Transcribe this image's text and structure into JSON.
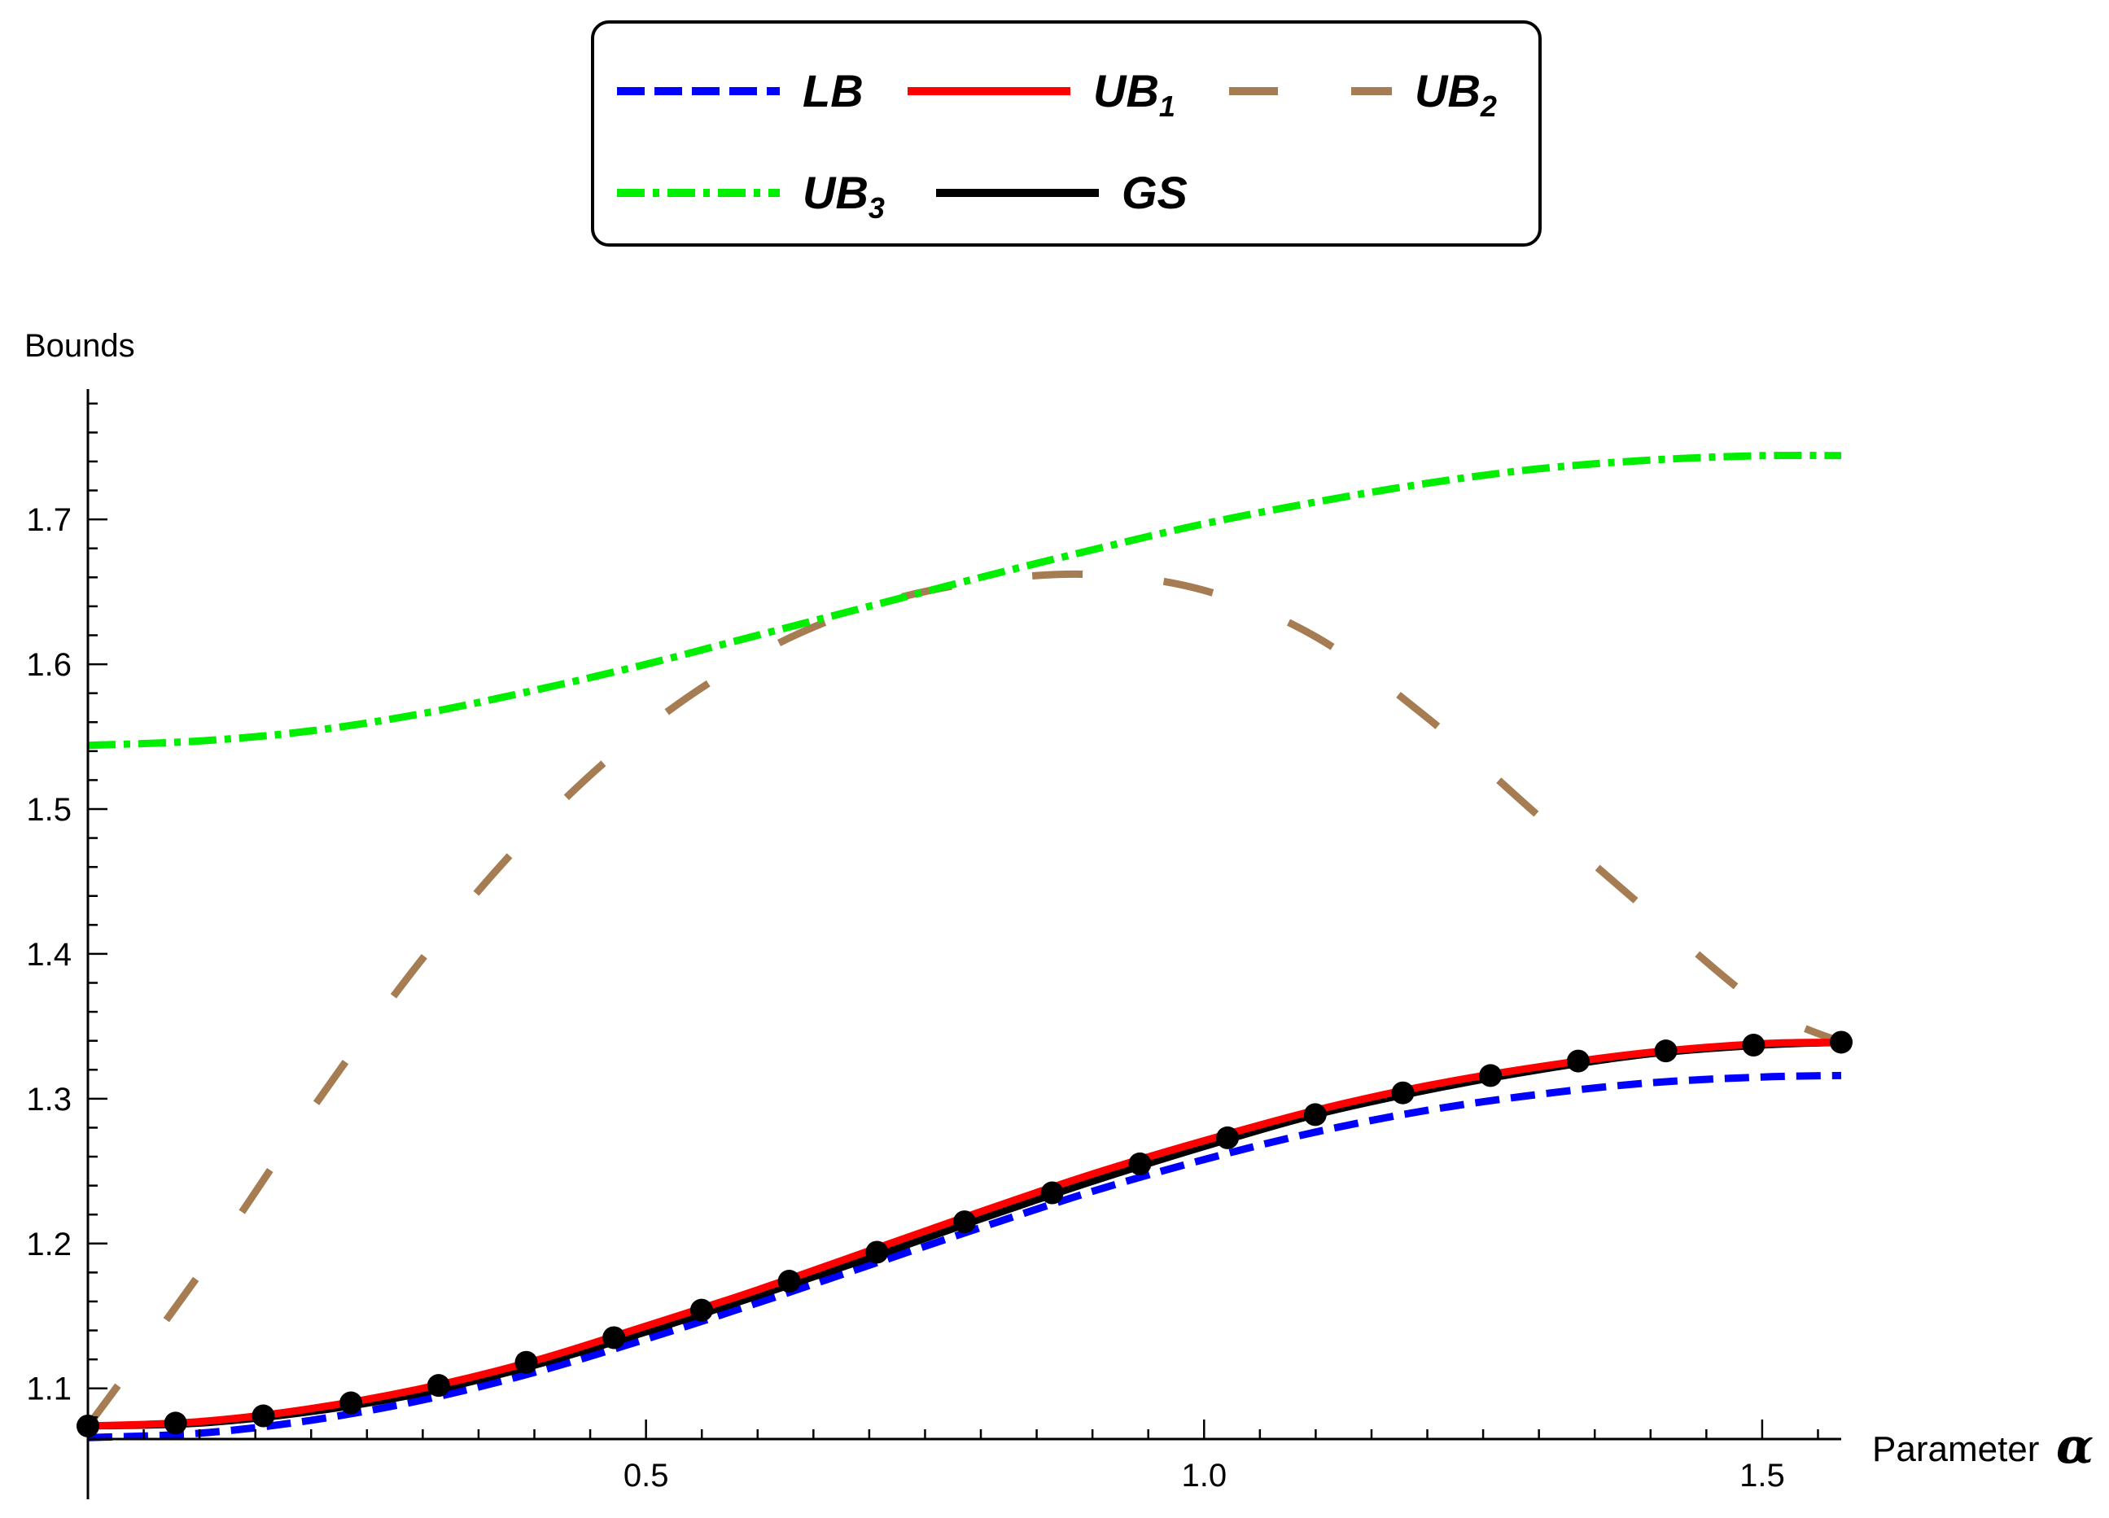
{
  "chart_data": {
    "type": "line",
    "ylabel": "Bounds",
    "xlabel": "Parameter",
    "xlabel_symbol": "α",
    "xlim": [
      0,
      1.5708
    ],
    "ylim": [
      1.065,
      1.79
    ],
    "x_ticks": [
      0.5,
      1.0,
      1.5
    ],
    "x_tick_labels": [
      "0.5",
      "1.0",
      "1.5"
    ],
    "y_ticks": [
      1.1,
      1.2,
      1.3,
      1.4,
      1.5,
      1.6,
      1.7
    ],
    "y_tick_labels": [
      "1.1",
      "1.2",
      "1.3",
      "1.4",
      "1.5",
      "1.6",
      "1.7"
    ],
    "legend_position": "top-center",
    "series": [
      {
        "name": "LB",
        "sub": "",
        "color": "#0000ff",
        "style": "dashed",
        "x": [
          0,
          0.1,
          0.2,
          0.3,
          0.4,
          0.5,
          0.6,
          0.7,
          0.8,
          0.9,
          1.0,
          1.1,
          1.2,
          1.3,
          1.4,
          1.5,
          1.5708
        ],
        "values": [
          1.066,
          1.069,
          1.078,
          1.092,
          1.111,
          1.134,
          1.159,
          1.185,
          1.211,
          1.236,
          1.258,
          1.277,
          1.292,
          1.303,
          1.311,
          1.315,
          1.316
        ]
      },
      {
        "name": "UB",
        "sub": "1",
        "color": "#ff0000",
        "style": "solid",
        "x": [
          0,
          0.1,
          0.2,
          0.3,
          0.4,
          0.5,
          0.6,
          0.7,
          0.8,
          0.9,
          1.0,
          1.1,
          1.2,
          1.3,
          1.4,
          1.5,
          1.5708
        ],
        "values": [
          1.074,
          1.077,
          1.086,
          1.1,
          1.119,
          1.143,
          1.168,
          1.195,
          1.222,
          1.248,
          1.271,
          1.292,
          1.309,
          1.322,
          1.332,
          1.338,
          1.339
        ]
      },
      {
        "name": "UB",
        "sub": "2",
        "color": "#a67c52",
        "style": "longdash",
        "x": [
          0,
          0.1,
          0.2,
          0.3,
          0.4,
          0.5,
          0.6,
          0.7,
          0.8,
          0.9,
          1.0,
          1.1,
          1.2,
          1.3,
          1.4,
          1.5,
          1.5708
        ],
        "values": [
          1.074,
          1.179,
          1.292,
          1.397,
          1.486,
          1.556,
          1.607,
          1.64,
          1.657,
          1.662,
          1.651,
          1.619,
          1.563,
          1.495,
          1.428,
          1.364,
          1.339
        ]
      },
      {
        "name": "UB",
        "sub": "3",
        "color": "#00ee00",
        "style": "dashdot",
        "x": [
          0,
          0.1,
          0.2,
          0.3,
          0.4,
          0.5,
          0.6,
          0.7,
          0.8,
          0.9,
          1.0,
          1.1,
          1.2,
          1.3,
          1.4,
          1.5,
          1.5708
        ],
        "values": [
          1.544,
          1.547,
          1.554,
          1.566,
          1.582,
          1.6,
          1.62,
          1.64,
          1.66,
          1.679,
          1.697,
          1.712,
          1.725,
          1.735,
          1.741,
          1.744,
          1.744
        ]
      },
      {
        "name": "GS",
        "sub": "",
        "color": "#000000",
        "style": "solid",
        "x": [
          0,
          0.1,
          0.2,
          0.3,
          0.4,
          0.5,
          0.6,
          0.7,
          0.8,
          0.9,
          1.0,
          1.1,
          1.2,
          1.3,
          1.4,
          1.5,
          1.5708
        ],
        "values": [
          1.074,
          1.076,
          1.084,
          1.097,
          1.116,
          1.139,
          1.164,
          1.19,
          1.217,
          1.243,
          1.267,
          1.289,
          1.306,
          1.32,
          1.331,
          1.337,
          1.339
        ]
      }
    ],
    "markers": {
      "color": "#000000",
      "x": [
        0,
        0.0785,
        0.1571,
        0.2356,
        0.3142,
        0.3927,
        0.4712,
        0.5498,
        0.6283,
        0.7069,
        0.7854,
        0.8639,
        0.9425,
        1.021,
        1.0996,
        1.1781,
        1.2566,
        1.3352,
        1.4137,
        1.4923,
        1.5708
      ],
      "values": [
        1.074,
        1.076,
        1.081,
        1.09,
        1.102,
        1.118,
        1.135,
        1.154,
        1.174,
        1.194,
        1.215,
        1.235,
        1.255,
        1.273,
        1.289,
        1.304,
        1.316,
        1.326,
        1.333,
        1.337,
        1.339
      ]
    }
  }
}
